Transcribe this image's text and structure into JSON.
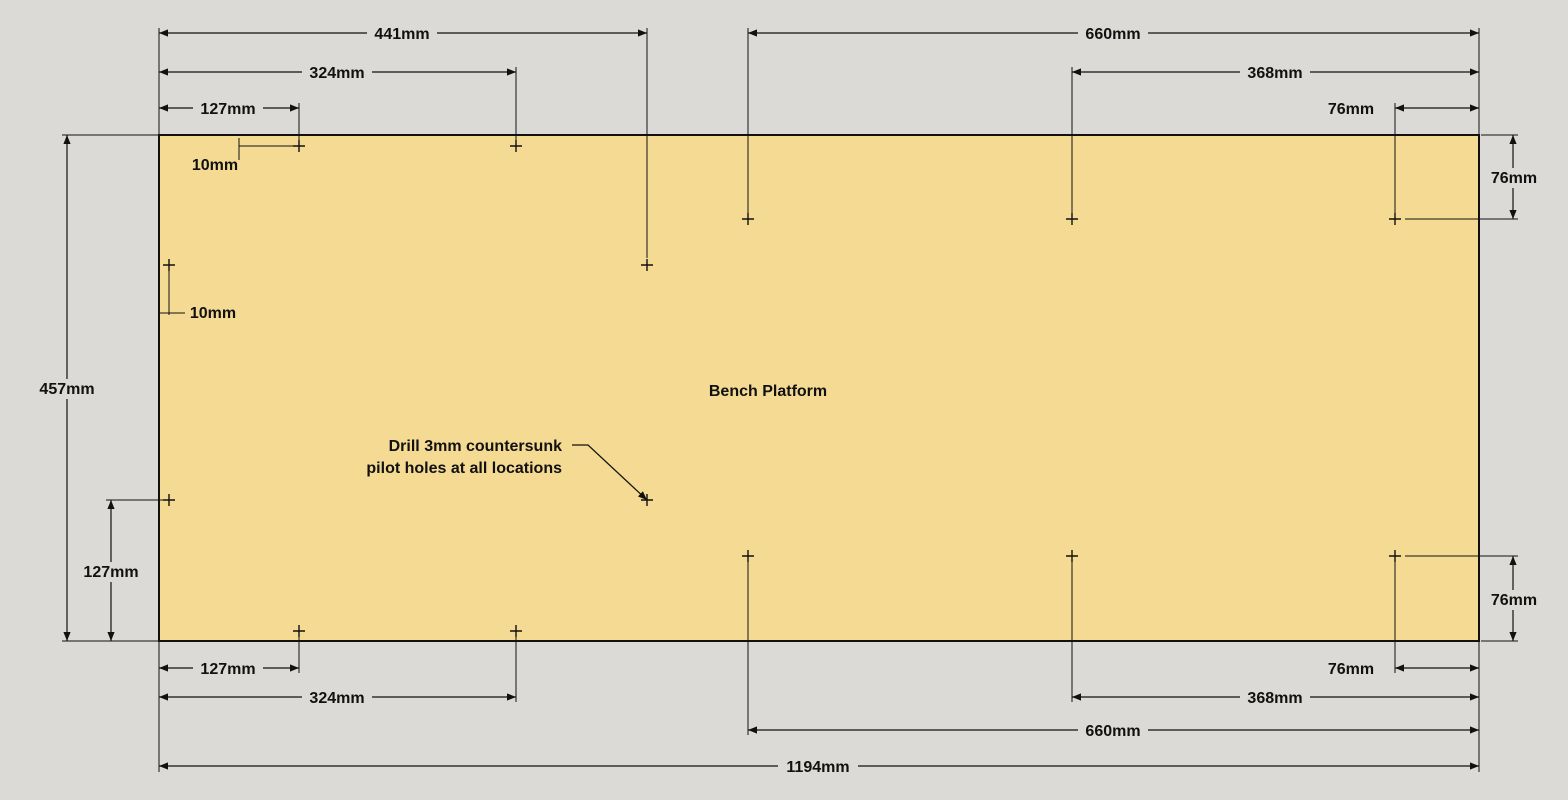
{
  "colors": {
    "background": "#dcdad6",
    "panel_fill": "#f5da93",
    "ink": "#111111"
  },
  "panel_label": "Bench Platform",
  "note": {
    "line1": "Drill 3mm countersunk",
    "line2": "pilot holes at all locations"
  },
  "dimensions": {
    "overall_width": "1194mm",
    "overall_height": "457mm",
    "top_441": "441mm",
    "top_324": "324mm",
    "top_127": "127mm",
    "top_660": "660mm",
    "top_368": "368mm",
    "top_76": "76mm",
    "edge_offset_top": "10mm",
    "edge_offset_left": "10mm",
    "right_76_top": "76mm",
    "right_76_bottom": "76mm",
    "left_127": "127mm",
    "bottom_127": "127mm",
    "bottom_324": "324mm",
    "bottom_660": "660mm",
    "bottom_368": "368mm",
    "bottom_76": "76mm"
  },
  "hole_count": 14
}
